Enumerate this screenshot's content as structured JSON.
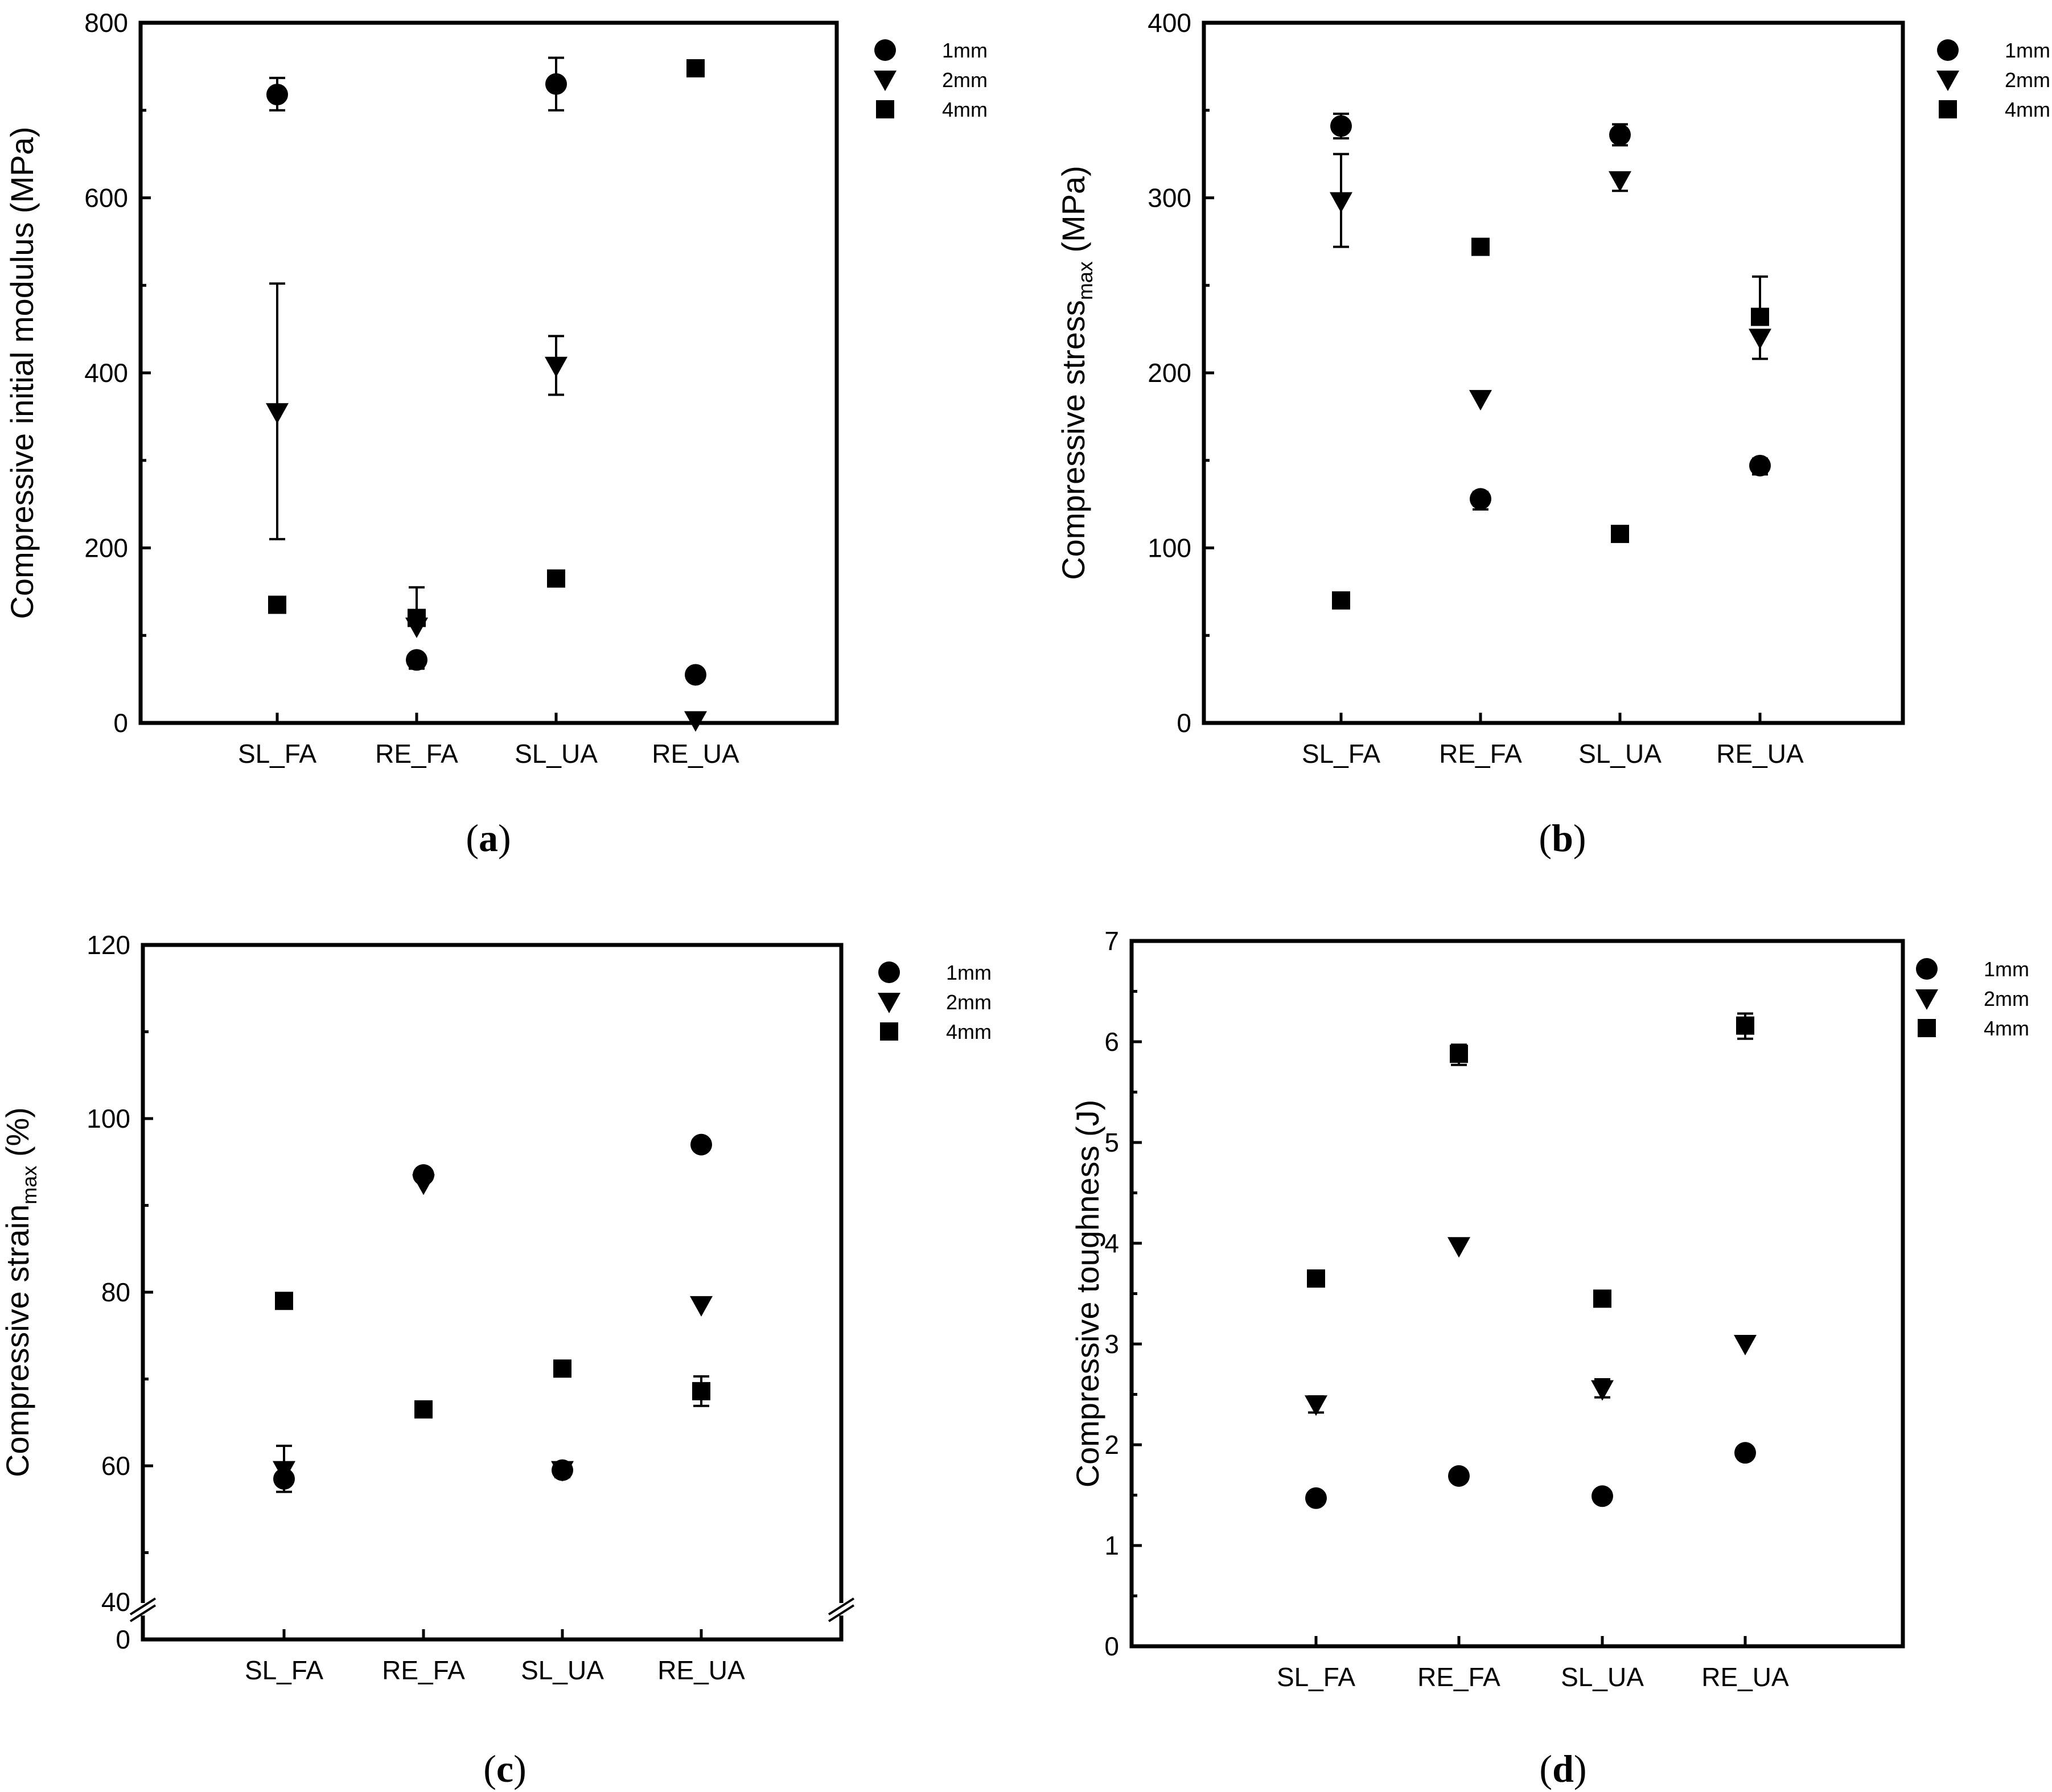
{
  "figure": {
    "panels": [
      {
        "id": "a",
        "caption": "(a)",
        "caption_letter": "a",
        "chart_data": {
          "type": "scatter",
          "ylabel": "Compressive initial modulus (MPa)",
          "ylabel_sub": "",
          "ylabel_after": "",
          "ylim": [
            0,
            800
          ],
          "yticks": [
            0,
            200,
            400,
            600,
            800
          ],
          "yminor": [
            100,
            300,
            500,
            700
          ],
          "categories": [
            "SL_FA",
            "RE_FA",
            "SL_UA",
            "RE_UA"
          ],
          "legend": {
            "placement": "outside-top-right",
            "entries": [
              "1mm",
              "2mm",
              "4mm"
            ]
          },
          "series": [
            {
              "name": "1mm",
              "marker": "circle",
              "values": [
                718,
                72,
                730,
                55
              ],
              "err_high": [
                737,
                0,
                760,
                0
              ],
              "err_low": [
                700,
                62,
                700,
                0
              ]
            },
            {
              "name": "2mm",
              "marker": "triangle-down",
              "values": [
                355,
                110,
                408,
                3
              ],
              "err_high": [
                502,
                155,
                442,
                0
              ],
              "err_low": [
                210,
                0,
                375,
                0
              ]
            },
            {
              "name": "4mm",
              "marker": "square",
              "values": [
                135,
                120,
                165,
                748
              ],
              "err_high": [
                0,
                0,
                0,
                752
              ],
              "err_low": [
                0,
                0,
                0,
                742
              ]
            }
          ]
        }
      },
      {
        "id": "b",
        "caption": "(b)",
        "caption_letter": "b",
        "chart_data": {
          "type": "scatter",
          "ylabel": "Compressive  stress",
          "ylabel_sub": "max",
          "ylabel_after": " (MPa)",
          "ylim": [
            0,
            400
          ],
          "yticks": [
            0,
            100,
            200,
            300,
            400
          ],
          "yminor": [
            50,
            150,
            250,
            350
          ],
          "categories": [
            "SL_FA",
            "RE_FA",
            "SL_UA",
            "RE_UA"
          ],
          "legend": {
            "placement": "outside-top-right",
            "entries": [
              "1mm",
              "2mm",
              "4mm"
            ]
          },
          "series": [
            {
              "name": "1mm",
              "marker": "circle",
              "values": [
                341,
                128,
                336,
                147
              ],
              "err_high": [
                348,
                132,
                342,
                151
              ],
              "err_low": [
                334,
                122,
                330,
                142
              ]
            },
            {
              "name": "2mm",
              "marker": "triangle-down",
              "values": [
                298,
                185,
                310,
                220
              ],
              "err_high": [
                325,
                0,
                313,
                0
              ],
              "err_low": [
                272,
                0,
                304,
                208
              ]
            },
            {
              "name": "4mm",
              "marker": "square",
              "values": [
                70,
                272,
                108,
                232
              ],
              "err_high": [
                0,
                0,
                0,
                255
              ],
              "err_low": [
                0,
                0,
                0,
                0
              ]
            }
          ]
        }
      },
      {
        "id": "c",
        "caption": "(c)",
        "caption_letter": "c",
        "chart_data": {
          "type": "scatter",
          "ylabel": "Compressive strain",
          "ylabel_sub": "max",
          "ylabel_after": " (%)",
          "ylim": [
            40,
            120
          ],
          "yticks": [
            40,
            60,
            80,
            100,
            120
          ],
          "yminor": [
            50,
            70,
            90,
            110
          ],
          "axis_break": {
            "zero_label": "0",
            "lower_label": "40"
          },
          "categories": [
            "SL_FA",
            "RE_FA",
            "SL_UA",
            "RE_UA"
          ],
          "legend": {
            "placement": "outside-top-right",
            "entries": [
              "1mm",
              "2mm",
              "4mm"
            ]
          },
          "series": [
            {
              "name": "1mm",
              "marker": "circle",
              "values": [
                58.5,
                93.5,
                59.5,
                97
              ],
              "err_high": [
                0,
                0,
                60.2,
                0
              ],
              "err_low": [
                57,
                0,
                58.7,
                0
              ]
            },
            {
              "name": "2mm",
              "marker": "triangle-down",
              "values": [
                59.5,
                92.5,
                59.5,
                78.5
              ],
              "err_high": [
                62.3,
                0,
                0,
                0
              ],
              "err_low": [
                0,
                0,
                0,
                0
              ]
            },
            {
              "name": "4mm",
              "marker": "square",
              "values": [
                79,
                66.5,
                71.2,
                68.6
              ],
              "err_high": [
                0,
                0,
                0,
                70.3
              ],
              "err_low": [
                0,
                0,
                0,
                66.9
              ]
            }
          ]
        }
      },
      {
        "id": "d",
        "caption": "(d)",
        "caption_letter": "d",
        "chart_data": {
          "type": "scatter",
          "ylabel": "Compressive toughness (J)",
          "ylabel_sub": "",
          "ylabel_after": "",
          "ylim": [
            0,
            7
          ],
          "yticks": [
            0,
            1,
            2,
            3,
            4,
            5,
            6,
            7
          ],
          "yminor": [
            0.5,
            1.5,
            2.5,
            3.5,
            4.5,
            5.5,
            6.5
          ],
          "categories": [
            "SL_FA",
            "RE_FA",
            "SL_UA",
            "RE_UA"
          ],
          "legend": {
            "placement": "outside-top-right",
            "entries": [
              "1mm",
              "2mm",
              "4mm"
            ]
          },
          "series": [
            {
              "name": "1mm",
              "marker": "circle",
              "values": [
                1.47,
                1.69,
                1.49,
                1.92
              ],
              "err_high": [
                0,
                0,
                0,
                0
              ],
              "err_low": [
                0,
                0,
                0,
                0
              ]
            },
            {
              "name": "2mm",
              "marker": "triangle-down",
              "values": [
                2.4,
                3.97,
                2.55,
                3.0
              ],
              "err_high": [
                2.48,
                0,
                2.65,
                0
              ],
              "err_low": [
                2.32,
                0,
                2.47,
                0
              ]
            },
            {
              "name": "4mm",
              "marker": "square",
              "values": [
                3.65,
                5.88,
                3.45,
                6.16
              ],
              "err_high": [
                0,
                5.97,
                0,
                6.28
              ],
              "err_low": [
                0,
                5.77,
                0,
                6.03
              ]
            }
          ]
        }
      }
    ]
  }
}
